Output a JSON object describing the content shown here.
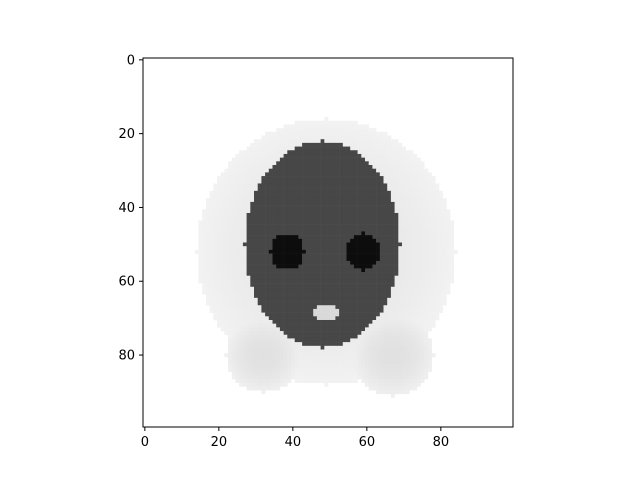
{
  "chart_data": {
    "type": "heatmap",
    "title": "",
    "xlabel": "",
    "ylabel": "",
    "colormap": "gray_r",
    "colors": {
      "background": "#ffffff",
      "axes": "#000000"
    },
    "grid": false,
    "xlim": [
      -0.5,
      99.5
    ],
    "ylim": [
      99.5,
      -0.5
    ],
    "xticks": [
      0,
      20,
      40,
      60,
      80
    ],
    "yticks": [
      0,
      20,
      40,
      60,
      80
    ],
    "xtick_labels": [
      "0",
      "20",
      "40",
      "60",
      "80"
    ],
    "ytick_labels": [
      "0",
      "20",
      "40",
      "60",
      "80"
    ],
    "image_shape": [
      100,
      100
    ],
    "features": [
      {
        "name": "hair",
        "cx": 49,
        "cy": 52,
        "rx": 35,
        "ry": 36,
        "intensity": 0.1
      },
      {
        "name": "lower-hair-left",
        "cx": 32,
        "cy": 80,
        "rx": 10,
        "ry": 10,
        "intensity": 0.12
      },
      {
        "name": "lower-hair-right",
        "cx": 67,
        "cy": 80,
        "rx": 11,
        "ry": 11,
        "intensity": 0.12
      },
      {
        "name": "face",
        "cx": 48,
        "cy": 50,
        "rx": 21,
        "ry": 28,
        "intensity": 0.72
      },
      {
        "name": "forehead",
        "cx": 48,
        "cy": 38,
        "rx": 16,
        "ry": 8,
        "intensity": 0.55
      },
      {
        "name": "left-eye",
        "cx": 38.5,
        "cy": 52,
        "rx": 4.5,
        "ry": 5,
        "intensity": 0.95
      },
      {
        "name": "right-eye",
        "cx": 59,
        "cy": 52,
        "rx": 4.5,
        "ry": 5,
        "intensity": 0.95
      },
      {
        "name": "mouth",
        "cx": 49,
        "cy": 68.5,
        "rx": 4,
        "ry": 2,
        "intensity": 0.1
      }
    ]
  }
}
